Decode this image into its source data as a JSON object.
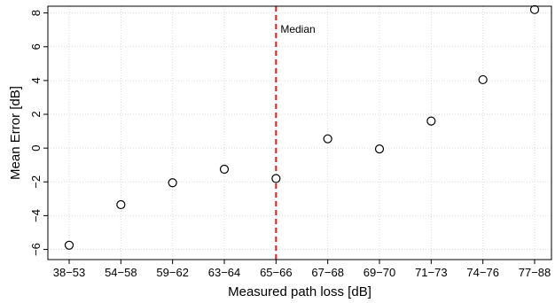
{
  "chart_data": {
    "type": "scatter",
    "xlabel": "Measured path loss [dB]",
    "ylabel": "Mean Error [dB]",
    "categories": [
      "38−53",
      "54−58",
      "59−62",
      "63−64",
      "65−66",
      "67−68",
      "69−70",
      "71−73",
      "74−76",
      "77−88"
    ],
    "values": [
      -5.75,
      -3.35,
      -2.05,
      -1.25,
      -1.8,
      0.55,
      -0.05,
      1.6,
      4.05,
      8.2
    ],
    "ylim": [
      -6.6,
      8.4
    ],
    "yticks": [
      -6,
      -4,
      -2,
      0,
      2,
      4,
      6,
      8
    ],
    "grid": true,
    "annotations": [
      {
        "type": "vline",
        "category": "65−66",
        "label": "Median",
        "color": "#e31a1c"
      }
    ]
  }
}
